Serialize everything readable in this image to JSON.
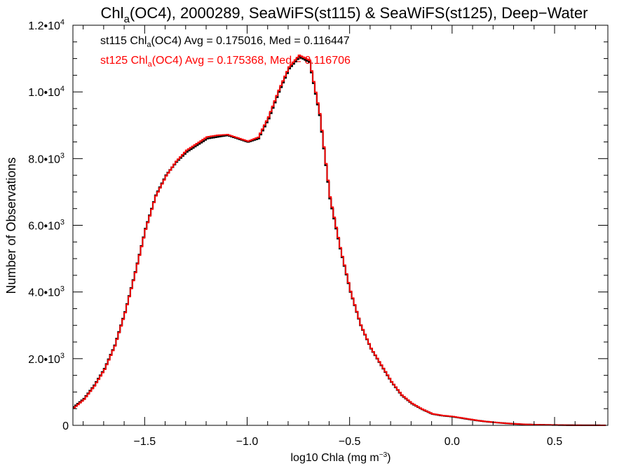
{
  "chart_data": {
    "type": "line",
    "title_parts": {
      "pre": "Chl",
      "sub": "a",
      "post": "(OC4), 2000289, SeaWiFS(st115) & SeaWiFS(st125), Deep−Water"
    },
    "xlabel_parts": {
      "pre": "log10 Chla (mg m",
      "sup": "−3",
      "post": ")"
    },
    "ylabel": "Number of Observations",
    "xlim": [
      -1.85,
      0.76
    ],
    "ylim": [
      0,
      12000
    ],
    "xticks": [
      {
        "value": -1.5,
        "label": "−1.5"
      },
      {
        "value": -1.0,
        "label": "−1.0"
      },
      {
        "value": -0.5,
        "label": "−0.5"
      },
      {
        "value": 0.0,
        "label": "0.0"
      },
      {
        "value": 0.5,
        "label": "0.5"
      }
    ],
    "yticks": [
      {
        "value": 0,
        "mant": "0",
        "exp": ""
      },
      {
        "value": 2000,
        "mant": "2.0•10",
        "exp": "3"
      },
      {
        "value": 4000,
        "mant": "4.0•10",
        "exp": "3"
      },
      {
        "value": 6000,
        "mant": "6.0•10",
        "exp": "3"
      },
      {
        "value": 8000,
        "mant": "8.0•10",
        "exp": "3"
      },
      {
        "value": 10000,
        "mant": "1.0•10",
        "exp": "4"
      },
      {
        "value": 12000,
        "mant": "1.2•10",
        "exp": "4"
      }
    ],
    "grid": false,
    "series": [
      {
        "name": "st115",
        "color": "#000000",
        "annotation": {
          "pre": "st115 Chl",
          "sub": "a",
          "post": "(OC4) Avg = 0.175016, Med = 0.116447"
        },
        "x": [
          -1.85,
          -1.8,
          -1.75,
          -1.7,
          -1.65,
          -1.6,
          -1.55,
          -1.5,
          -1.45,
          -1.4,
          -1.35,
          -1.3,
          -1.25,
          -1.2,
          -1.15,
          -1.1,
          -1.05,
          -1.0,
          -0.95,
          -0.9,
          -0.85,
          -0.8,
          -0.75,
          -0.7,
          -0.65,
          -0.6,
          -0.55,
          -0.5,
          -0.45,
          -0.4,
          -0.35,
          -0.3,
          -0.25,
          -0.2,
          -0.15,
          -0.1,
          -0.05,
          0.0,
          0.05,
          0.1,
          0.15,
          0.2,
          0.25,
          0.3,
          0.35,
          0.4,
          0.45,
          0.5,
          0.55,
          0.6,
          0.65,
          0.7,
          0.75
        ],
        "y": [
          550,
          800,
          1200,
          1700,
          2400,
          3400,
          4600,
          5900,
          6900,
          7500,
          7900,
          8200,
          8400,
          8600,
          8650,
          8700,
          8600,
          8500,
          8600,
          9200,
          10000,
          10700,
          11050,
          10900,
          9300,
          6800,
          5300,
          4000,
          3000,
          2300,
          1800,
          1300,
          900,
          650,
          480,
          340,
          290,
          260,
          210,
          160,
          120,
          90,
          65,
          45,
          30,
          20,
          14,
          10,
          6,
          4,
          3,
          2,
          1
        ]
      },
      {
        "name": "st125",
        "color": "#ff0000",
        "annotation": {
          "pre": "st125 Chl",
          "sub": "a",
          "post": "(OC4) Avg = 0.175368, Med = 0.116706"
        },
        "x": [
          -1.85,
          -1.8,
          -1.75,
          -1.7,
          -1.65,
          -1.6,
          -1.55,
          -1.5,
          -1.45,
          -1.4,
          -1.35,
          -1.3,
          -1.25,
          -1.2,
          -1.15,
          -1.1,
          -1.05,
          -1.0,
          -0.95,
          -0.9,
          -0.85,
          -0.8,
          -0.75,
          -0.7,
          -0.65,
          -0.6,
          -0.55,
          -0.5,
          -0.45,
          -0.4,
          -0.35,
          -0.3,
          -0.25,
          -0.2,
          -0.15,
          -0.1,
          -0.05,
          0.0,
          0.05,
          0.1,
          0.15,
          0.2,
          0.25,
          0.3,
          0.35,
          0.4,
          0.45,
          0.5,
          0.55,
          0.6,
          0.65,
          0.7,
          0.75
        ],
        "y": [
          520,
          780,
          1180,
          1680,
          2380,
          3380,
          4580,
          5880,
          6880,
          7480,
          7920,
          8250,
          8450,
          8650,
          8700,
          8720,
          8620,
          8520,
          8640,
          9250,
          10050,
          10750,
          11100,
          10950,
          9350,
          6850,
          5330,
          4020,
          3010,
          2310,
          1810,
          1310,
          910,
          660,
          485,
          345,
          295,
          265,
          215,
          165,
          122,
          92,
          66,
          46,
          31,
          21,
          15,
          10,
          6,
          4,
          3,
          2,
          1
        ]
      }
    ]
  }
}
